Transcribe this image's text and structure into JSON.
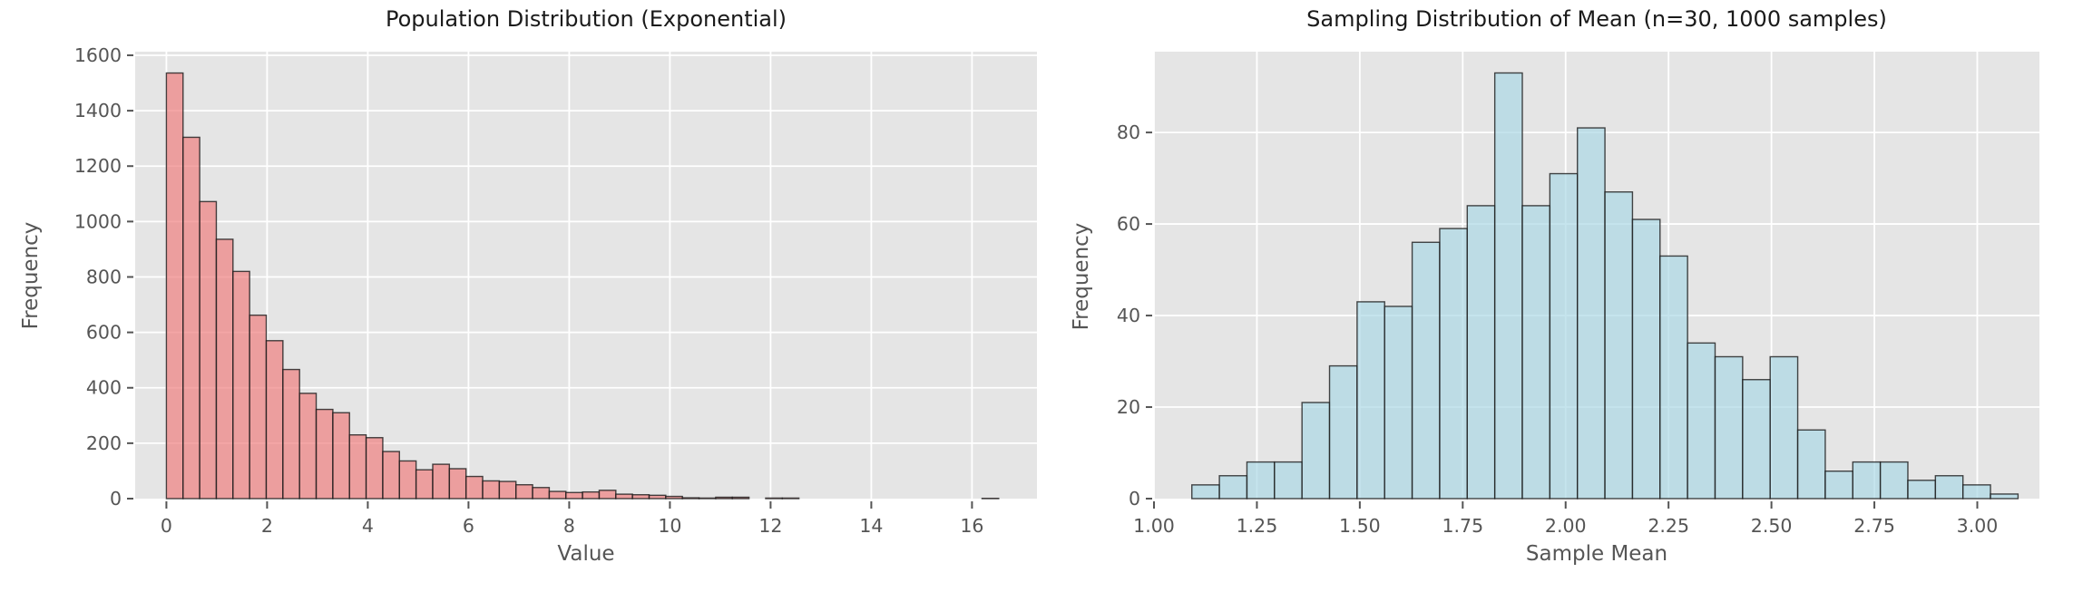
{
  "figure": {
    "background": "#ffffff",
    "panel_background": "#e5e5e5",
    "gridline_color": "#ffffff",
    "tick_color": "#555555",
    "tick_label_color": "#555555",
    "title_color": "#1a1a1a"
  },
  "chart_data": [
    {
      "type": "bar",
      "subtype": "histogram",
      "title": "Population Distribution (Exponential)",
      "xlabel": "Value",
      "ylabel": "Frequency",
      "bar_color": "#F08080",
      "bar_alpha": 0.7,
      "edge_color": "#1a1a1a",
      "bin_start": 0.0,
      "bin_width": 0.3306,
      "values": [
        1536,
        1304,
        1072,
        936,
        820,
        662,
        570,
        466,
        380,
        322,
        310,
        230,
        220,
        170,
        136,
        104,
        124,
        108,
        80,
        64,
        62,
        50,
        40,
        26,
        22,
        24,
        30,
        16,
        14,
        12,
        8,
        3,
        2,
        5,
        5,
        0,
        2,
        2,
        0,
        0,
        0,
        0,
        0,
        0,
        0,
        0,
        0,
        0,
        0,
        1
      ],
      "xlim": [
        -0.62,
        17.29
      ],
      "ylim": [
        0,
        1613
      ],
      "xticks": [
        0,
        2,
        4,
        6,
        8,
        10,
        12,
        14,
        16
      ],
      "xtick_labels": [
        "0",
        "2",
        "4",
        "6",
        "8",
        "10",
        "12",
        "14",
        "16"
      ],
      "yticks": [
        0,
        200,
        400,
        600,
        800,
        1000,
        1200,
        1400,
        1600
      ],
      "ytick_labels": [
        "0",
        "200",
        "400",
        "600",
        "800",
        "1000",
        "1200",
        "1400",
        "1600"
      ],
      "grid": true,
      "legend_position": "none"
    },
    {
      "type": "bar",
      "subtype": "histogram",
      "title": "Sampling Distribution of Mean (n=30, 1000 samples)",
      "xlabel": "Sample Mean",
      "ylabel": "Frequency",
      "bar_color": "#ADD8E6",
      "bar_alpha": 0.7,
      "edge_color": "#1a1a1a",
      "bin_start": 1.092,
      "bin_width": 0.0669,
      "values": [
        3,
        5,
        8,
        8,
        21,
        29,
        43,
        42,
        56,
        59,
        64,
        93,
        64,
        71,
        81,
        67,
        61,
        53,
        34,
        31,
        26,
        31,
        15,
        6,
        8,
        8,
        4,
        5,
        3,
        1
      ],
      "xlim": [
        1.0,
        3.151
      ],
      "ylim": [
        0,
        97.65
      ],
      "xticks": [
        1.0,
        1.25,
        1.5,
        1.75,
        2.0,
        2.25,
        2.5,
        2.75,
        3.0
      ],
      "xtick_labels": [
        "1.00",
        "1.25",
        "1.50",
        "1.75",
        "2.00",
        "2.25",
        "2.50",
        "2.75",
        "3.00"
      ],
      "yticks": [
        0,
        20,
        40,
        60,
        80
      ],
      "ytick_labels": [
        "0",
        "20",
        "40",
        "60",
        "80"
      ],
      "grid": true,
      "legend_position": "none"
    }
  ]
}
